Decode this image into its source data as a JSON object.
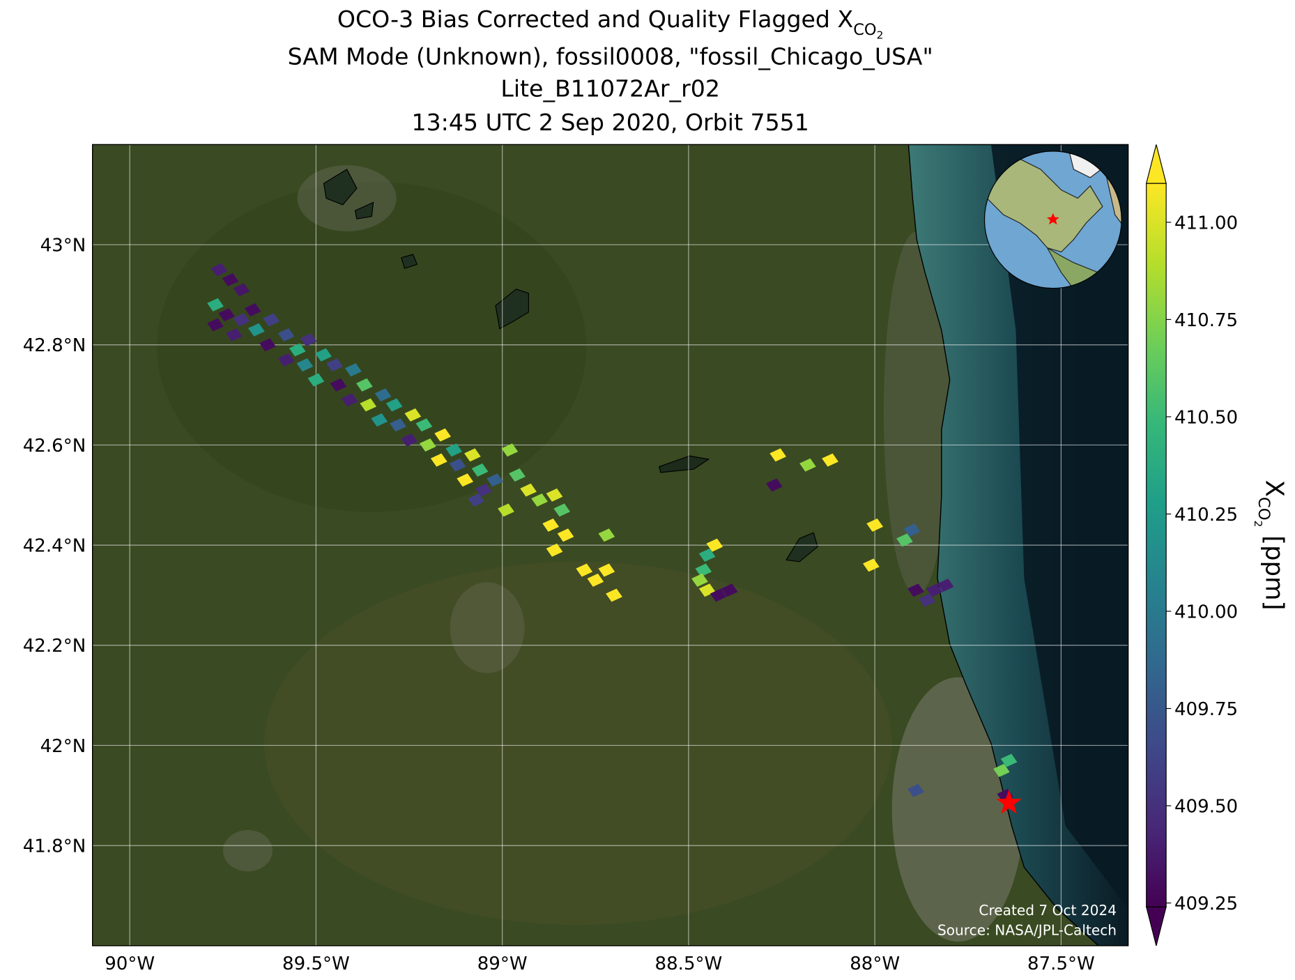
{
  "chart_data": {
    "type": "map",
    "title": [
      "OCO-3 Bias Corrected and Quality Flagged X",
      "SAM Mode (Unknown), fossil0008, \"fossil_Chicago_USA\"",
      "Lite_B11072Ar_r02",
      "13:45 UTC 2 Sep 2020, Orbit 7551"
    ],
    "title_subscript": [
      "CO",
      "2"
    ],
    "xlim": [
      -90.1,
      -87.32
    ],
    "ylim": [
      41.6,
      43.2
    ],
    "xticks": [
      {
        "value": -90,
        "label": "90°W"
      },
      {
        "value": -89.5,
        "label": "89.5°W"
      },
      {
        "value": -89,
        "label": "89°W"
      },
      {
        "value": -88.5,
        "label": "88.5°W"
      },
      {
        "value": -88,
        "label": "88°W"
      },
      {
        "value": -87.5,
        "label": "87.5°W"
      }
    ],
    "yticks": [
      {
        "value": 41.8,
        "label": "41.8°N"
      },
      {
        "value": 42,
        "label": "42°N"
      },
      {
        "value": 42.2,
        "label": "42.2°N"
      },
      {
        "value": 42.4,
        "label": "42.4°N"
      },
      {
        "value": 42.6,
        "label": "42.6°N"
      },
      {
        "value": 42.8,
        "label": "42.8°N"
      },
      {
        "value": 43,
        "label": "43°N"
      }
    ],
    "grid": true,
    "colormap": "viridis",
    "colorbar": {
      "label": "X",
      "label_subscript": [
        "CO",
        "2"
      ],
      "label_unit": "[ppm]",
      "lim": [
        409.24,
        411.1
      ],
      "ticks": [
        {
          "value": 409.25,
          "label": "409.25"
        },
        {
          "value": 409.5,
          "label": "409.50"
        },
        {
          "value": 409.75,
          "label": "409.75"
        },
        {
          "value": 410,
          "label": "410.00"
        },
        {
          "value": 410.25,
          "label": "410.25"
        },
        {
          "value": 410.5,
          "label": "410.50"
        },
        {
          "value": 410.75,
          "label": "410.75"
        },
        {
          "value": 411,
          "label": "411.00"
        }
      ]
    },
    "target": {
      "lon": -87.64,
      "lat": 41.885,
      "color": "#ff0000"
    },
    "annotations": [
      "Created 7 Oct 2024",
      "Source: NASA/JPL-Caltech"
    ],
    "soundings": [
      {
        "lon": -89.76,
        "lat": 42.95,
        "xco2": 409.4
      },
      {
        "lon": -89.73,
        "lat": 42.93,
        "xco2": 409.3
      },
      {
        "lon": -89.7,
        "lat": 42.91,
        "xco2": 409.35
      },
      {
        "lon": -89.77,
        "lat": 42.88,
        "xco2": 410.4
      },
      {
        "lon": -89.74,
        "lat": 42.86,
        "xco2": 409.3
      },
      {
        "lon": -89.7,
        "lat": 42.85,
        "xco2": 409.5
      },
      {
        "lon": -89.67,
        "lat": 42.87,
        "xco2": 409.3
      },
      {
        "lon": -89.77,
        "lat": 42.84,
        "xco2": 409.3
      },
      {
        "lon": -89.72,
        "lat": 42.82,
        "xco2": 409.4
      },
      {
        "lon": -89.66,
        "lat": 42.83,
        "xco2": 410.2
      },
      {
        "lon": -89.62,
        "lat": 42.85,
        "xco2": 409.6
      },
      {
        "lon": -89.63,
        "lat": 42.8,
        "xco2": 409.3
      },
      {
        "lon": -89.58,
        "lat": 42.82,
        "xco2": 409.7
      },
      {
        "lon": -89.55,
        "lat": 42.79,
        "xco2": 410.4
      },
      {
        "lon": -89.52,
        "lat": 42.81,
        "xco2": 409.5
      },
      {
        "lon": -89.58,
        "lat": 42.77,
        "xco2": 409.4
      },
      {
        "lon": -89.53,
        "lat": 42.76,
        "xco2": 410.1
      },
      {
        "lon": -89.48,
        "lat": 42.78,
        "xco2": 410.3
      },
      {
        "lon": -89.45,
        "lat": 42.76,
        "xco2": 409.6
      },
      {
        "lon": -89.5,
        "lat": 42.73,
        "xco2": 410.4
      },
      {
        "lon": -89.44,
        "lat": 42.72,
        "xco2": 409.3
      },
      {
        "lon": -89.4,
        "lat": 42.75,
        "xco2": 410.0
      },
      {
        "lon": -89.37,
        "lat": 42.72,
        "xco2": 410.6
      },
      {
        "lon": -89.41,
        "lat": 42.69,
        "xco2": 409.4
      },
      {
        "lon": -89.36,
        "lat": 42.68,
        "xco2": 410.9
      },
      {
        "lon": -89.32,
        "lat": 42.7,
        "xco2": 409.9
      },
      {
        "lon": -89.29,
        "lat": 42.68,
        "xco2": 410.3
      },
      {
        "lon": -89.33,
        "lat": 42.65,
        "xco2": 410.2
      },
      {
        "lon": -89.28,
        "lat": 42.64,
        "xco2": 409.8
      },
      {
        "lon": -89.24,
        "lat": 42.66,
        "xco2": 411.0
      },
      {
        "lon": -89.21,
        "lat": 42.64,
        "xco2": 410.5
      },
      {
        "lon": -89.25,
        "lat": 42.61,
        "xco2": 409.4
      },
      {
        "lon": -89.2,
        "lat": 42.6,
        "xco2": 410.8
      },
      {
        "lon": -89.16,
        "lat": 42.62,
        "xco2": 411.1
      },
      {
        "lon": -89.13,
        "lat": 42.59,
        "xco2": 410.3
      },
      {
        "lon": -89.17,
        "lat": 42.57,
        "xco2": 411.1
      },
      {
        "lon": -89.12,
        "lat": 42.56,
        "xco2": 409.7
      },
      {
        "lon": -89.08,
        "lat": 42.58,
        "xco2": 411.0
      },
      {
        "lon": -89.06,
        "lat": 42.55,
        "xco2": 410.5
      },
      {
        "lon": -89.1,
        "lat": 42.53,
        "xco2": 411.1
      },
      {
        "lon": -89.05,
        "lat": 42.51,
        "xco2": 409.5
      },
      {
        "lon": -89.02,
        "lat": 42.53,
        "xco2": 409.8
      },
      {
        "lon": -89.07,
        "lat": 42.49,
        "xco2": 409.6
      },
      {
        "lon": -88.98,
        "lat": 42.59,
        "xco2": 410.8
      },
      {
        "lon": -88.96,
        "lat": 42.54,
        "xco2": 410.6
      },
      {
        "lon": -88.93,
        "lat": 42.51,
        "xco2": 411.0
      },
      {
        "lon": -88.99,
        "lat": 42.47,
        "xco2": 410.9
      },
      {
        "lon": -88.9,
        "lat": 42.49,
        "xco2": 410.8
      },
      {
        "lon": -88.86,
        "lat": 42.5,
        "xco2": 411.0
      },
      {
        "lon": -88.84,
        "lat": 42.47,
        "xco2": 410.6
      },
      {
        "lon": -88.87,
        "lat": 42.44,
        "xco2": 411.1
      },
      {
        "lon": -88.83,
        "lat": 42.42,
        "xco2": 411.1
      },
      {
        "lon": -88.86,
        "lat": 42.39,
        "xco2": 411.1
      },
      {
        "lon": -88.72,
        "lat": 42.42,
        "xco2": 410.8
      },
      {
        "lon": -88.78,
        "lat": 42.35,
        "xco2": 411.1
      },
      {
        "lon": -88.75,
        "lat": 42.33,
        "xco2": 411.1
      },
      {
        "lon": -88.72,
        "lat": 42.35,
        "xco2": 411.1
      },
      {
        "lon": -88.7,
        "lat": 42.3,
        "xco2": 411.1
      },
      {
        "lon": -88.43,
        "lat": 42.4,
        "xco2": 411.1
      },
      {
        "lon": -88.45,
        "lat": 42.38,
        "xco2": 410.4
      },
      {
        "lon": -88.46,
        "lat": 42.35,
        "xco2": 410.5
      },
      {
        "lon": -88.47,
        "lat": 42.33,
        "xco2": 410.8
      },
      {
        "lon": -88.45,
        "lat": 42.31,
        "xco2": 411.0
      },
      {
        "lon": -88.42,
        "lat": 42.3,
        "xco2": 409.3
      },
      {
        "lon": -88.39,
        "lat": 42.31,
        "xco2": 409.3
      },
      {
        "lon": -88.26,
        "lat": 42.58,
        "xco2": 411.1
      },
      {
        "lon": -88.18,
        "lat": 42.56,
        "xco2": 410.8
      },
      {
        "lon": -88.12,
        "lat": 42.57,
        "xco2": 411.1
      },
      {
        "lon": -88.27,
        "lat": 42.52,
        "xco2": 409.3
      },
      {
        "lon": -88.0,
        "lat": 42.44,
        "xco2": 411.1
      },
      {
        "lon": -87.9,
        "lat": 42.43,
        "xco2": 409.8
      },
      {
        "lon": -87.92,
        "lat": 42.41,
        "xco2": 410.6
      },
      {
        "lon": -88.01,
        "lat": 42.36,
        "xco2": 411.1
      },
      {
        "lon": -87.89,
        "lat": 42.31,
        "xco2": 409.3
      },
      {
        "lon": -87.84,
        "lat": 42.31,
        "xco2": 409.4
      },
      {
        "lon": -87.86,
        "lat": 42.29,
        "xco2": 409.5
      },
      {
        "lon": -87.81,
        "lat": 42.32,
        "xco2": 409.4
      },
      {
        "lon": -87.89,
        "lat": 41.91,
        "xco2": 409.7
      },
      {
        "lon": -87.66,
        "lat": 41.95,
        "xco2": 410.7
      },
      {
        "lon": -87.64,
        "lat": 41.97,
        "xco2": 410.5
      },
      {
        "lon": -87.65,
        "lat": 41.9,
        "xco2": 409.3
      }
    ]
  }
}
